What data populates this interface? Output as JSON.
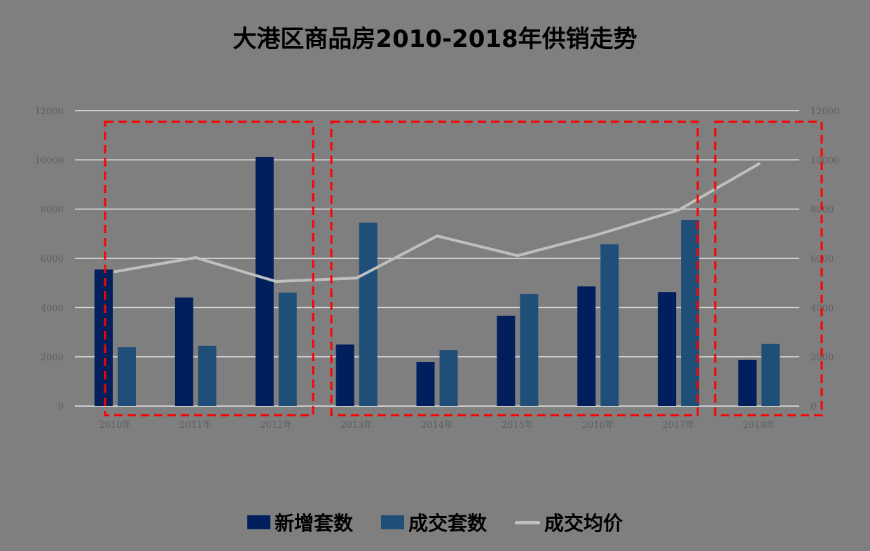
{
  "title": "大港区商品房2010-2018年供销走势",
  "colors": {
    "background": "#7f7f7f",
    "new_units": "#001f5c",
    "sold_units": "#1f4e79",
    "avg_price": "#bfbfbf",
    "gridline": "#e6e6e6",
    "highlight_box": "#ff0000"
  },
  "legend": [
    {
      "label": "新增套数",
      "type": "bar",
      "color": "#001f5c"
    },
    {
      "label": "成交套数",
      "type": "bar",
      "color": "#1f4e79"
    },
    {
      "label": "成交均价",
      "type": "line",
      "color": "#bfbfbf"
    }
  ],
  "chart_data": {
    "type": "bar+line",
    "title": "大港区商品房2010-2018年供销走势",
    "categories": [
      "2010年",
      "2011年",
      "2012年",
      "2013年",
      "2014年",
      "2015年",
      "2016年",
      "2017年",
      "2018年"
    ],
    "series": [
      {
        "name": "新增套数",
        "type": "bar",
        "axis": "left",
        "values": [
          5550,
          4410,
          10120,
          2500,
          1790,
          3670,
          4860,
          4630,
          1880
        ]
      },
      {
        "name": "成交套数",
        "type": "bar",
        "axis": "left",
        "values": [
          2390,
          2450,
          4610,
          7450,
          2270,
          4550,
          6570,
          7560,
          2530
        ]
      },
      {
        "name": "成交均价",
        "type": "line",
        "axis": "right",
        "values": [
          5460,
          6030,
          5060,
          5200,
          6910,
          6110,
          6970,
          7960,
          9840
        ]
      }
    ],
    "left_axis": {
      "ticks": [
        0,
        2000,
        4000,
        6000,
        8000,
        10000,
        12000
      ],
      "ylim": [
        0,
        12000
      ]
    },
    "right_axis": {
      "ticks": [
        0,
        2000,
        4000,
        6000,
        8000,
        10000,
        12000
      ],
      "ylim": [
        0,
        12000
      ]
    },
    "xlabel": "",
    "ylabel": "",
    "grid": true,
    "legend_position": "bottom",
    "annotations": [
      {
        "type": "dashed-box",
        "covers": [
          "2010年",
          "2011年",
          "2012年"
        ]
      },
      {
        "type": "dashed-box",
        "covers": [
          "2013年",
          "2014年",
          "2015年",
          "2016年",
          "2017年"
        ]
      },
      {
        "type": "dashed-box",
        "covers": [
          "2018年"
        ]
      }
    ]
  }
}
